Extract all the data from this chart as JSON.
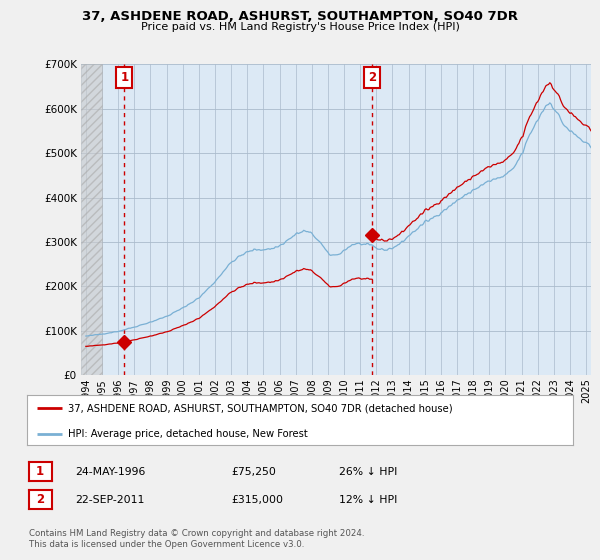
{
  "title": "37, ASHDENE ROAD, ASHURST, SOUTHAMPTON, SO40 7DR",
  "subtitle": "Price paid vs. HM Land Registry's House Price Index (HPI)",
  "legend_line1": "37, ASHDENE ROAD, ASHURST, SOUTHAMPTON, SO40 7DR (detached house)",
  "legend_line2": "HPI: Average price, detached house, New Forest",
  "footnote": "Contains HM Land Registry data © Crown copyright and database right 2024.\nThis data is licensed under the Open Government Licence v3.0.",
  "sale1_date": "24-MAY-1996",
  "sale1_price_str": "£75,250",
  "sale1_price": 75250,
  "sale1_pct": "26% ↓ HPI",
  "sale1_label": "1",
  "sale1_x": 1996.38,
  "sale2_date": "22-SEP-2011",
  "sale2_price_str": "£315,000",
  "sale2_price": 315000,
  "sale2_pct": "12% ↓ HPI",
  "sale2_label": "2",
  "sale2_x": 2011.72,
  "marker_color": "#cc0000",
  "hpi_color": "#7ab0d4",
  "plot_fill_color": "#dce9f5",
  "background_color": "#f0f0f0",
  "plot_bg_color": "#ffffff",
  "ylim": [
    0,
    700000
  ],
  "yticks": [
    0,
    100000,
    200000,
    300000,
    400000,
    500000,
    600000,
    700000
  ],
  "xlim_start": 1993.7,
  "xlim_end": 2025.3,
  "xtick_years": [
    1994,
    1995,
    1996,
    1997,
    1998,
    1999,
    2000,
    2001,
    2002,
    2003,
    2004,
    2005,
    2006,
    2007,
    2008,
    2009,
    2010,
    2011,
    2012,
    2013,
    2014,
    2015,
    2016,
    2017,
    2018,
    2019,
    2020,
    2021,
    2022,
    2023,
    2024,
    2025
  ]
}
